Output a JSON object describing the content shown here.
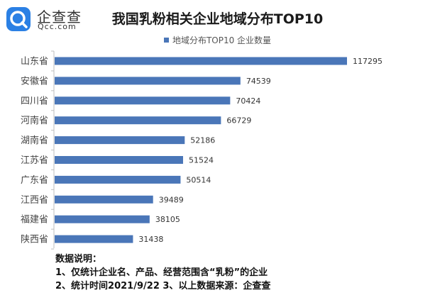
{
  "logo": {
    "text": "企查查",
    "subtext": "Qcc.com",
    "icon": "qcc-logo-icon"
  },
  "colors": {
    "bar": "#4a76b8",
    "logo": "#2b80e4"
  },
  "notes": {
    "heading": "数据说明：",
    "line1": "1、仅统计企业名、产品、经营范围含“乳粉”的企业",
    "line2": "2、统计时间2021/9/22    3、以上数据来源：企查查"
  },
  "chart_data": {
    "type": "bar",
    "orientation": "horizontal",
    "title": "我国乳粉相关企业地域分布TOP10",
    "legend": {
      "position": "top",
      "entry": "地域分布TOP10 企业数量"
    },
    "categories": [
      "山东省",
      "安徽省",
      "四川省",
      "河南省",
      "湖南省",
      "江苏省",
      "广东省",
      "江西省",
      "福建省",
      "陕西省"
    ],
    "series": [
      {
        "name": "地域分布TOP10 企业数量",
        "values": [
          117295,
          74539,
          70424,
          66729,
          52186,
          51524,
          50514,
          39489,
          38105,
          31438
        ]
      }
    ],
    "xlim": [
      0,
      117295
    ],
    "grid": false,
    "data_labels": true
  }
}
